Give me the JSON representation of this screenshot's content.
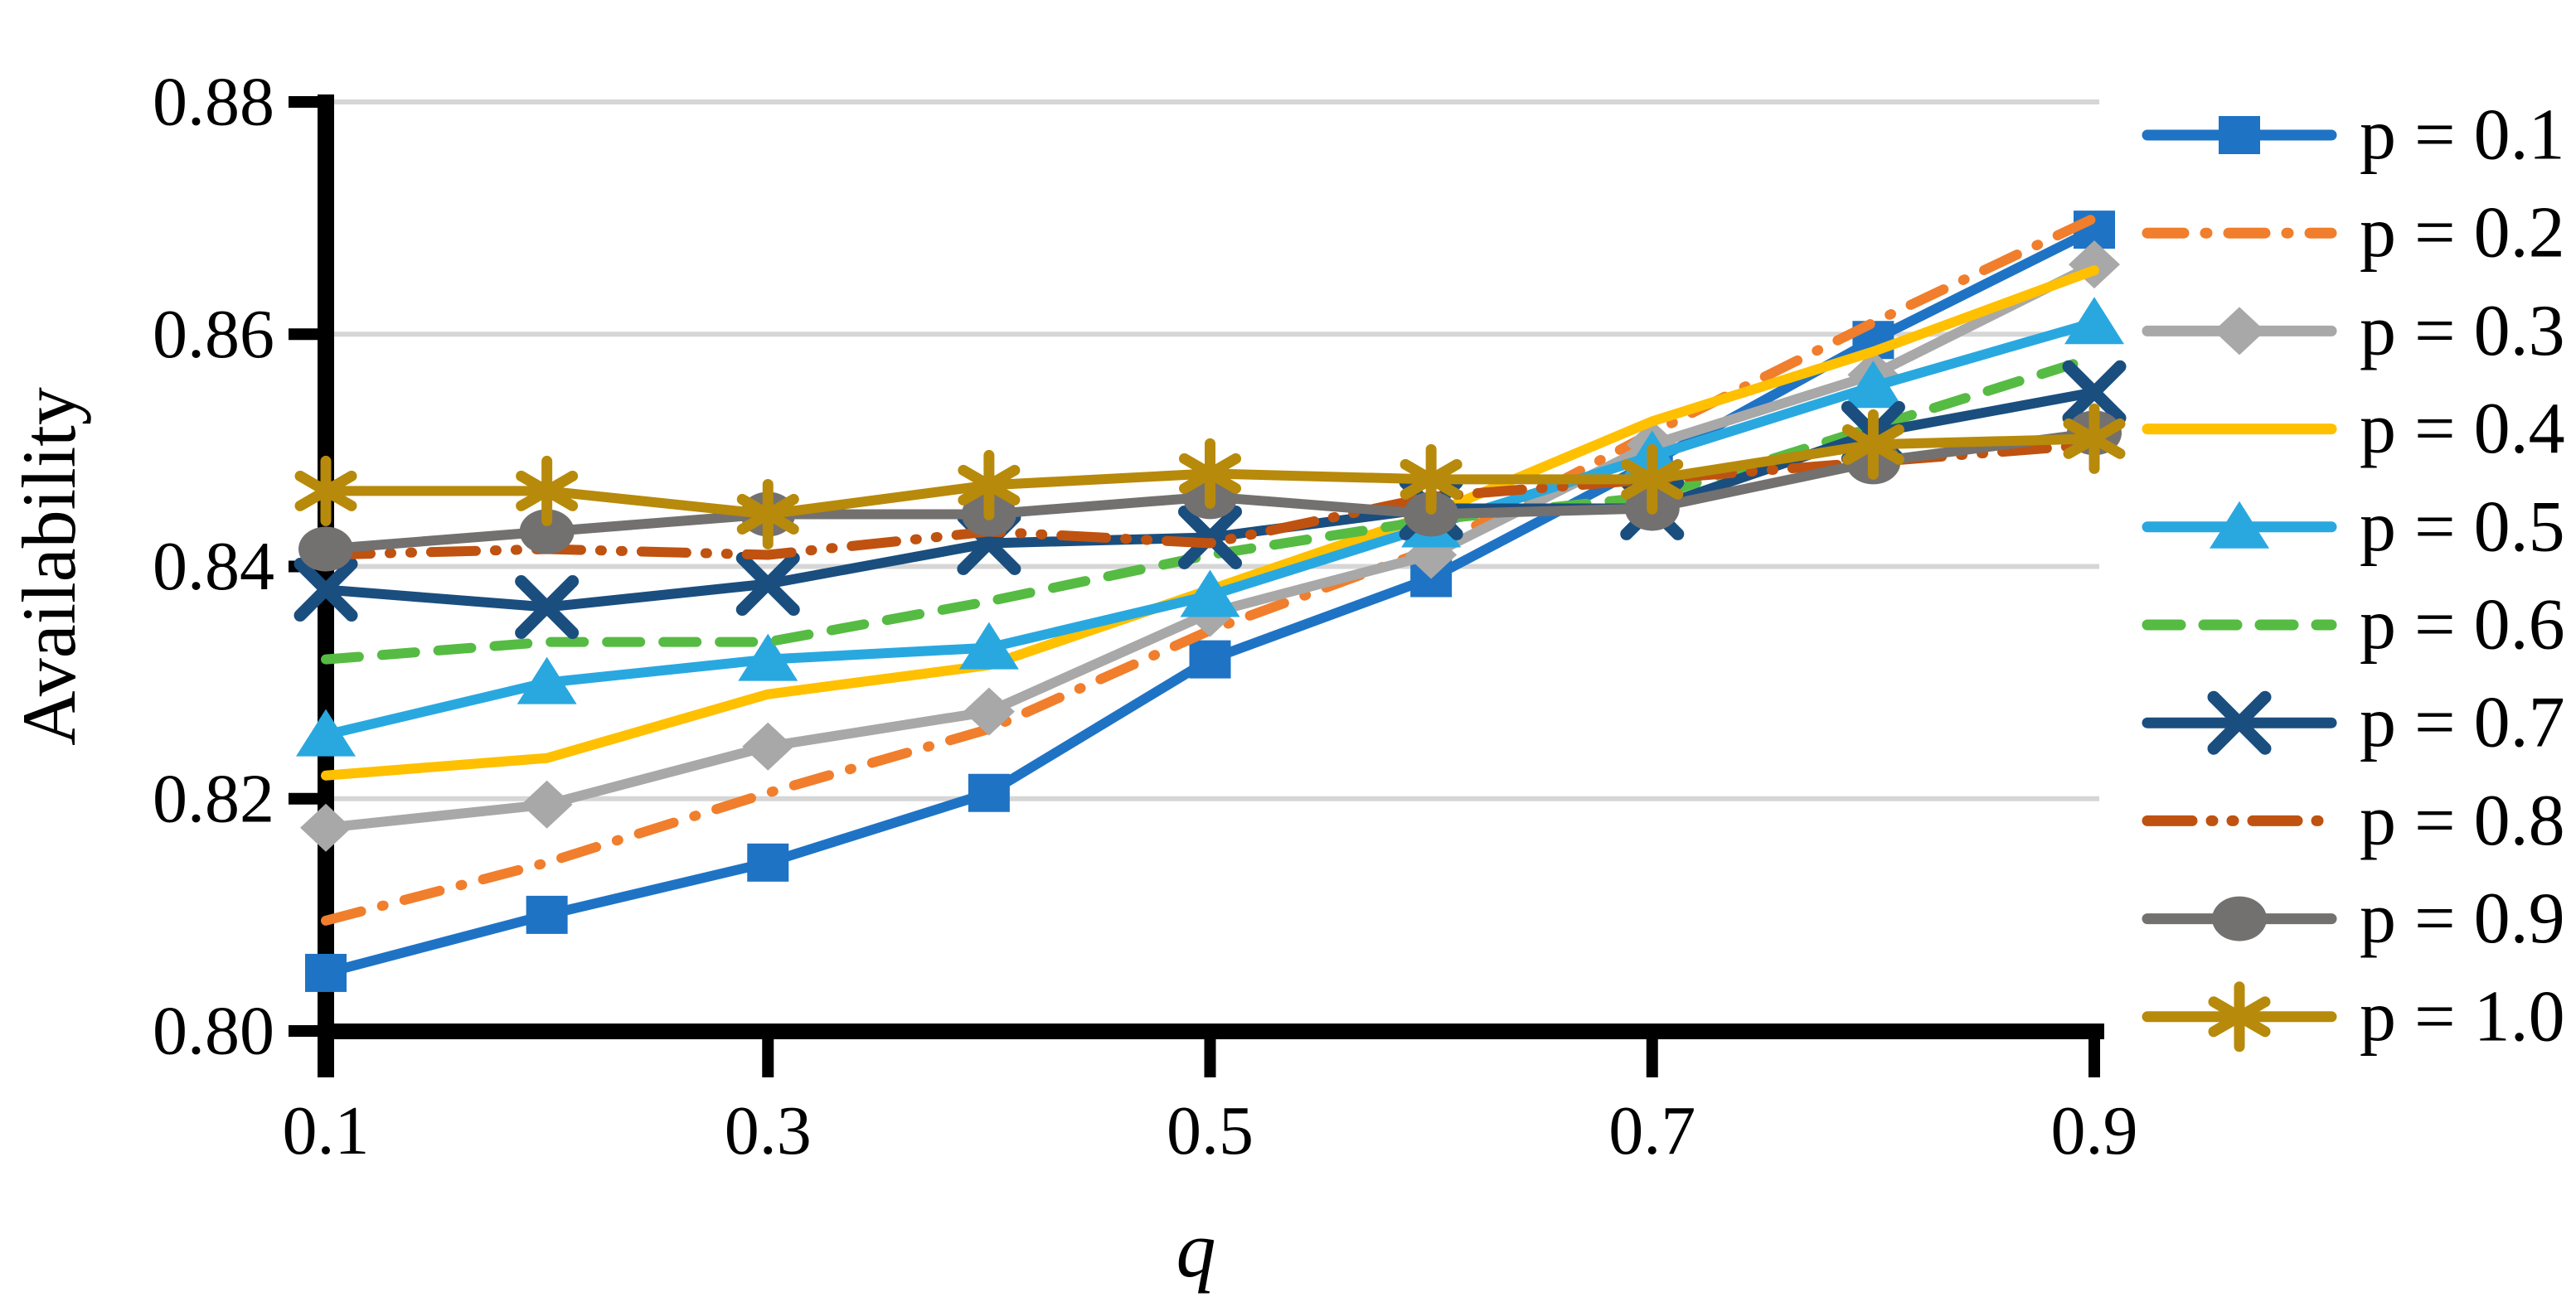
{
  "chart_data": {
    "type": "line",
    "title": "",
    "xlabel": "q",
    "ylabel": "Availability",
    "x": [
      0.1,
      0.2,
      0.3,
      0.4,
      0.5,
      0.6,
      0.7,
      0.8,
      0.9
    ],
    "x_tick_labels": [
      "0.1",
      "0.3",
      "0.5",
      "0.7",
      "0.9"
    ],
    "x_ticks": [
      0.1,
      0.3,
      0.5,
      0.7,
      0.9
    ],
    "y_ticks": [
      0.8,
      0.82,
      0.84,
      0.86,
      0.88
    ],
    "y_tick_labels": [
      "0.80",
      "0.82",
      "0.84",
      "0.86",
      "0.88"
    ],
    "xlim": [
      0.1,
      0.9
    ],
    "ylim": [
      0.8,
      0.88
    ],
    "grid": "horizontal",
    "gridline_color": "#D6D6D6",
    "axis_color": "#000000",
    "legend_position": "right",
    "series": [
      {
        "name": "p = 0.1",
        "color": "#1F73C5",
        "marker": "square",
        "dash": "solid",
        "values": [
          0.805,
          0.81,
          0.8145,
          0.8205,
          0.832,
          0.839,
          0.849,
          0.8595,
          0.869
        ]
      },
      {
        "name": "p = 0.2",
        "color": "#F07E2C",
        "marker": "none",
        "dash": "dashdot",
        "values": [
          0.8095,
          0.8145,
          0.8205,
          0.826,
          0.8345,
          0.8415,
          0.8515,
          0.861,
          0.87
        ]
      },
      {
        "name": "p = 0.3",
        "color": "#A8A8A8",
        "marker": "diamond",
        "dash": "solid",
        "values": [
          0.8175,
          0.8195,
          0.8245,
          0.8275,
          0.836,
          0.841,
          0.8505,
          0.8565,
          0.866
        ]
      },
      {
        "name": "p = 0.4",
        "color": "#FFC000",
        "marker": "none",
        "dash": "solid",
        "values": [
          0.822,
          0.8235,
          0.829,
          0.8315,
          0.838,
          0.8445,
          0.8525,
          0.8585,
          0.8655
        ]
      },
      {
        "name": "p = 0.5",
        "color": "#29A8E0",
        "marker": "triangle",
        "dash": "solid",
        "values": [
          0.8255,
          0.83,
          0.832,
          0.833,
          0.8375,
          0.8435,
          0.8495,
          0.8555,
          0.861
        ]
      },
      {
        "name": "p = 0.6",
        "color": "#56BB43",
        "marker": "none",
        "dash": "dash",
        "values": [
          0.832,
          0.8335,
          0.8335,
          0.837,
          0.841,
          0.844,
          0.846,
          0.852,
          0.858
        ]
      },
      {
        "name": "p = 0.7",
        "color": "#1A4E7E",
        "marker": "x",
        "dash": "solid",
        "values": [
          0.838,
          0.8365,
          0.8385,
          0.842,
          0.8425,
          0.845,
          0.845,
          0.8515,
          0.855
        ]
      },
      {
        "name": "p = 0.8",
        "color": "#BF5210",
        "marker": "none",
        "dash": "dashdotdot",
        "values": [
          0.841,
          0.8415,
          0.841,
          0.843,
          0.842,
          0.846,
          0.8475,
          0.849,
          0.8505
        ]
      },
      {
        "name": "p = 0.9",
        "color": "#737070",
        "marker": "circle",
        "dash": "solid",
        "values": [
          0.8415,
          0.843,
          0.8445,
          0.8445,
          0.846,
          0.8445,
          0.845,
          0.849,
          0.8515
        ]
      },
      {
        "name": "p = 1.0",
        "color": "#B78A0B",
        "marker": "asterisk",
        "dash": "solid",
        "values": [
          0.8465,
          0.8465,
          0.8445,
          0.847,
          0.848,
          0.8475,
          0.8475,
          0.8505,
          0.851
        ]
      }
    ]
  },
  "axes": {
    "y_title": "Availability",
    "x_title": "q"
  },
  "legend": {
    "items": [
      "p = 0.1",
      "p = 0.2",
      "p = 0.3",
      "p = 0.4",
      "p = 0.5",
      "p = 0.6",
      "p = 0.7",
      "p = 0.8",
      "p = 0.9",
      "p = 1.0"
    ]
  }
}
